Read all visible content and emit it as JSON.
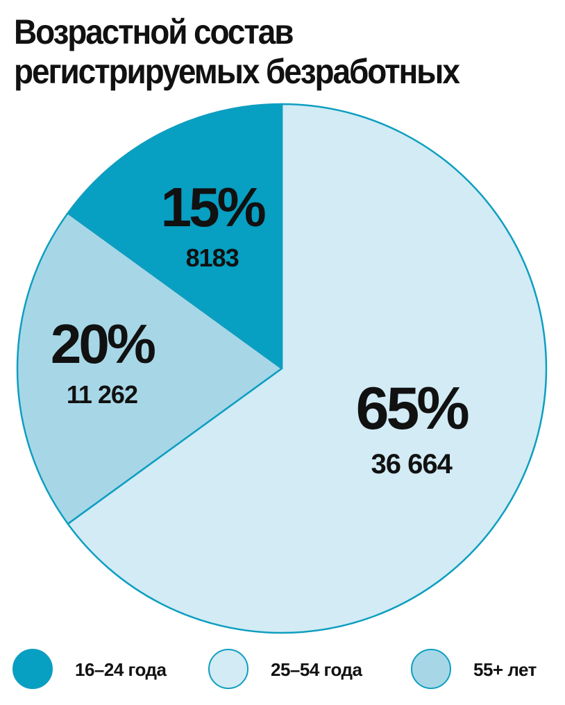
{
  "chart_data": {
    "type": "pie",
    "title_lines": [
      "Возрастной состав",
      "регистрируемых безработных"
    ],
    "slices": [
      {
        "label": "16–24 года",
        "percent": 15,
        "percent_label": "15%",
        "count_label": "8183",
        "color": "#079fc2"
      },
      {
        "label": "25–54 года",
        "percent": 65,
        "percent_label": "65%",
        "count_label": "36 664",
        "color": "#d2ebf5"
      },
      {
        "label": "55+ лет",
        "percent": 20,
        "percent_label": "20%",
        "count_label": "11 262",
        "color": "#a7d7e7"
      }
    ],
    "outline_color": "#0e9ec0",
    "legend_position": "bottom"
  }
}
